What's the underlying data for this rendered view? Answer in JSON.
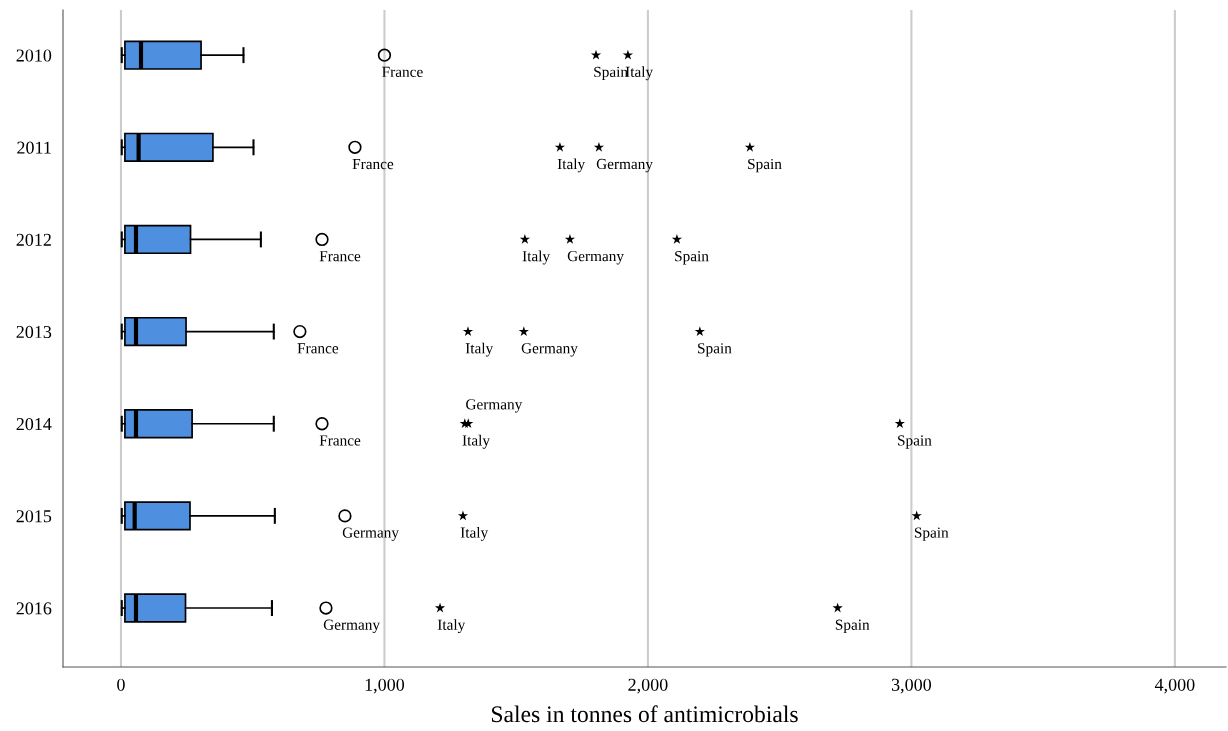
{
  "chart_data": {
    "type": "box",
    "orientation": "horizontal",
    "xlabel": "Sales in tonnes of antimicrobials",
    "categories": [
      "2010",
      "2011",
      "2012",
      "2013",
      "2014",
      "2015",
      "2016"
    ],
    "color": "#4f8fe0",
    "boxes": [
      {
        "low": 3,
        "q1": 15,
        "median": 76,
        "q3": 304,
        "high": 465
      },
      {
        "low": 3,
        "q1": 15,
        "median": 67,
        "q3": 349,
        "high": 503
      },
      {
        "low": 3,
        "q1": 15,
        "median": 57,
        "q3": 264,
        "high": 531
      },
      {
        "low": 3,
        "q1": 15,
        "median": 57,
        "q3": 247,
        "high": 580
      },
      {
        "low": 3,
        "q1": 15,
        "median": 57,
        "q3": 270,
        "high": 580
      },
      {
        "low": 3,
        "q1": 15,
        "median": 52,
        "q3": 262,
        "high": 584
      },
      {
        "low": 3,
        "q1": 15,
        "median": 57,
        "q3": 245,
        "high": 573
      }
    ],
    "series": [
      {
        "type": "scatter",
        "marker": "circle",
        "color": "#000000",
        "values": [
          1000,
          888,
          763,
          679,
          763,
          850,
          778
        ]
      },
      {
        "type": "scatter",
        "marker": "star",
        "color": "#000000",
        "values": [
          1803,
          1666,
          1533,
          1317,
          1305,
          1298,
          1211
        ]
      },
      {
        "type": "scatter",
        "marker": "star",
        "color": "#000000",
        "values": [
          1924,
          1814,
          1704,
          1529,
          1318,
          3020,
          2720
        ]
      },
      {
        "type": "scatter",
        "marker": "star",
        "color": "#000000",
        "values": [
          null,
          2387,
          2110,
          2197,
          2956,
          null,
          null
        ]
      }
    ],
    "annotations": [
      {
        "text": "France",
        "x": 1000,
        "y": "2010"
      },
      {
        "text": "Spain",
        "x": 1803,
        "y": "2010"
      },
      {
        "text": "Italy",
        "x": 1924,
        "y": "2010"
      },
      {
        "text": "France",
        "x": 888,
        "y": "2011"
      },
      {
        "text": "Italy",
        "x": 1666,
        "y": "2011"
      },
      {
        "text": "Germany",
        "x": 1814,
        "y": "2011"
      },
      {
        "text": "Spain",
        "x": 2387,
        "y": "2011"
      },
      {
        "text": "France",
        "x": 763,
        "y": "2012"
      },
      {
        "text": "Italy",
        "x": 1533,
        "y": "2012"
      },
      {
        "text": "Germany",
        "x": 1704,
        "y": "2012"
      },
      {
        "text": "Spain",
        "x": 2110,
        "y": "2012"
      },
      {
        "text": "France",
        "x": 679,
        "y": "2013"
      },
      {
        "text": "Italy",
        "x": 1317,
        "y": "2013"
      },
      {
        "text": "Germany",
        "x": 1529,
        "y": "2013"
      },
      {
        "text": "Spain",
        "x": 2197,
        "y": "2013"
      },
      {
        "text": "France",
        "x": 763,
        "y": "2014"
      },
      {
        "text": "Italy",
        "x": 1305,
        "y": "2014"
      },
      {
        "text": "Germany",
        "x": 1318,
        "y": "2014"
      },
      {
        "text": "Spain",
        "x": 2956,
        "y": "2014"
      },
      {
        "text": "Germany",
        "x": 850,
        "y": "2015"
      },
      {
        "text": "Italy",
        "x": 1298,
        "y": "2015"
      },
      {
        "text": "Spain",
        "x": 3020,
        "y": "2015"
      },
      {
        "text": "Germany",
        "x": 778,
        "y": "2016"
      },
      {
        "text": "Italy",
        "x": 1211,
        "y": "2016"
      },
      {
        "text": "Spain",
        "x": 2720,
        "y": "2016"
      }
    ],
    "xlim": [
      -220,
      4194
    ],
    "xticks": [
      0,
      {
        "value": 1000,
        "label": "1,000"
      },
      {
        "value": 2000,
        "label": "2,000"
      },
      {
        "value": 3000,
        "label": "3,000"
      },
      {
        "value": 4000,
        "label": "4,000"
      }
    ],
    "grid": "x"
  }
}
